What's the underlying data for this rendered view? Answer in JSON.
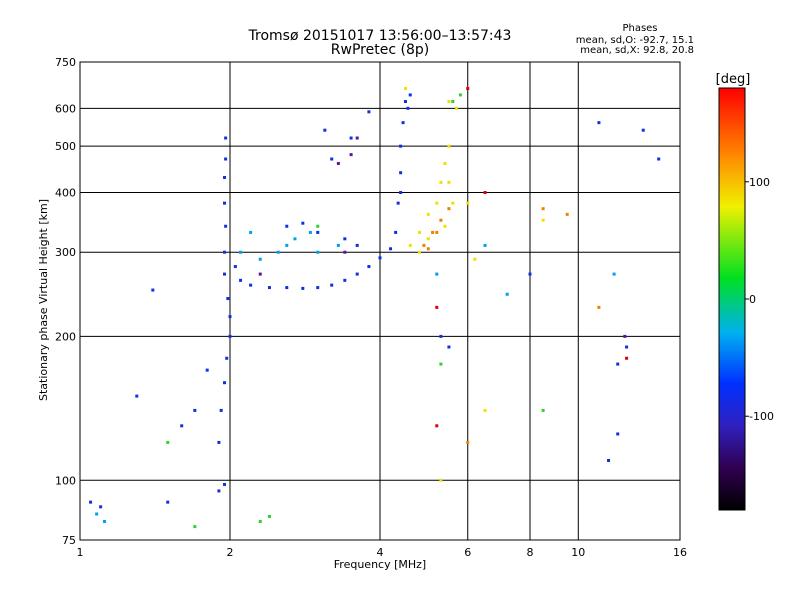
{
  "header": {
    "title": "Tromsø 20151017 13:56:00–13:57:43",
    "subtitle": "RwPretec (8p)"
  },
  "stats": {
    "heading": "Phases",
    "line_o": "mean, sd,O: -92.7, 15.1",
    "line_x": "mean, sd,X:  92.8, 20.8"
  },
  "colorbar": {
    "unit_label": "[deg]",
    "range": [
      -180,
      180
    ],
    "ticks": [
      "100",
      "0",
      "-100"
    ],
    "tick_values": [
      100,
      0,
      -100
    ]
  },
  "chart_data": {
    "type": "scatter",
    "xlabel": "Frequency [MHz]",
    "ylabel": "Stationary phase Virtual Height [km]",
    "xscale": "log",
    "yscale": "log",
    "xlim": [
      1,
      16
    ],
    "ylim": [
      75,
      750
    ],
    "x_ticks": [
      1,
      2,
      4,
      6,
      8,
      10,
      16
    ],
    "x_tick_labels": [
      "1",
      "2",
      "4",
      "6",
      "8",
      "10",
      "16"
    ],
    "y_ticks": [
      75,
      100,
      200,
      300,
      400,
      500,
      600,
      750
    ],
    "y_tick_labels": [
      "75",
      "100",
      "200",
      "300",
      "400",
      "500",
      "600",
      "750"
    ],
    "grid": true,
    "color_encoding": "phase [deg]",
    "series": [
      {
        "phase": -100,
        "color": "#1030e0",
        "points": [
          [
            1.9,
            95
          ],
          [
            1.95,
            98
          ],
          [
            1.9,
            120
          ],
          [
            1.92,
            140
          ],
          [
            1.95,
            160
          ],
          [
            1.97,
            180
          ],
          [
            2.0,
            200
          ],
          [
            2.0,
            220
          ],
          [
            1.98,
            240
          ],
          [
            1.95,
            270
          ],
          [
            1.95,
            300
          ],
          [
            1.96,
            340
          ],
          [
            1.95,
            380
          ],
          [
            1.95,
            430
          ],
          [
            1.96,
            470
          ],
          [
            1.96,
            520
          ],
          [
            2.05,
            280
          ],
          [
            2.1,
            262
          ],
          [
            2.2,
            256
          ],
          [
            2.4,
            253
          ],
          [
            2.6,
            253
          ],
          [
            2.8,
            252
          ],
          [
            3.0,
            253
          ],
          [
            3.2,
            256
          ],
          [
            3.4,
            262
          ],
          [
            3.6,
            270
          ],
          [
            3.8,
            280
          ],
          [
            4.0,
            292
          ],
          [
            4.2,
            305
          ],
          [
            4.3,
            330
          ],
          [
            4.35,
            380
          ],
          [
            4.4,
            440
          ],
          [
            4.4,
            500
          ],
          [
            4.45,
            560
          ],
          [
            4.5,
            620
          ],
          [
            4.6,
            640
          ],
          [
            4.55,
            600
          ],
          [
            4.4,
            400
          ],
          [
            2.6,
            340
          ],
          [
            2.8,
            345
          ],
          [
            3.0,
            330
          ],
          [
            3.4,
            320
          ],
          [
            3.6,
            310
          ],
          [
            3.2,
            470
          ],
          [
            3.5,
            520
          ],
          [
            3.8,
            590
          ],
          [
            3.1,
            540
          ],
          [
            1.4,
            250
          ],
          [
            1.3,
            150
          ],
          [
            1.6,
            130
          ],
          [
            1.7,
            140
          ],
          [
            1.8,
            170
          ],
          [
            1.05,
            90
          ],
          [
            1.1,
            88
          ],
          [
            1.5,
            90
          ],
          [
            5.3,
            200
          ],
          [
            5.5,
            190
          ],
          [
            8.0,
            270
          ],
          [
            11,
            560
          ],
          [
            12.5,
            190
          ],
          [
            12,
            175
          ],
          [
            12,
            125
          ],
          [
            11.5,
            110
          ],
          [
            13.5,
            540
          ],
          [
            14.5,
            470
          ]
        ]
      },
      {
        "phase": -50,
        "color": "#00a0f0",
        "points": [
          [
            2.1,
            300
          ],
          [
            2.3,
            290
          ],
          [
            2.5,
            300
          ],
          [
            2.7,
            320
          ],
          [
            2.9,
            330
          ],
          [
            3.0,
            300
          ],
          [
            2.6,
            310
          ],
          [
            2.2,
            330
          ],
          [
            3.3,
            310
          ],
          [
            1.12,
            82
          ],
          [
            1.08,
            85
          ],
          [
            11.8,
            270
          ],
          [
            6.5,
            310
          ],
          [
            5.2,
            270
          ],
          [
            7.2,
            245
          ]
        ]
      },
      {
        "phase": 30,
        "color": "#30d030",
        "points": [
          [
            2.3,
            82
          ],
          [
            2.4,
            84
          ],
          [
            1.7,
            80
          ],
          [
            3.0,
            340
          ],
          [
            5.6,
            620
          ],
          [
            5.8,
            640
          ],
          [
            8.5,
            140
          ],
          [
            1.5,
            120
          ],
          [
            5.3,
            175
          ]
        ]
      },
      {
        "phase": 110,
        "color": "#f0e000",
        "points": [
          [
            4.6,
            310
          ],
          [
            4.8,
            330
          ],
          [
            5.0,
            360
          ],
          [
            5.2,
            380
          ],
          [
            5.3,
            420
          ],
          [
            5.4,
            460
          ],
          [
            5.5,
            500
          ],
          [
            5.5,
            420
          ],
          [
            5.6,
            380
          ],
          [
            5.4,
            340
          ],
          [
            5.0,
            320
          ],
          [
            4.8,
            300
          ],
          [
            5.5,
            620
          ],
          [
            5.7,
            600
          ],
          [
            4.5,
            660
          ],
          [
            6.0,
            380
          ],
          [
            6.2,
            290
          ],
          [
            6.5,
            140
          ],
          [
            5.3,
            100
          ],
          [
            8.5,
            350
          ]
        ]
      },
      {
        "phase": 150,
        "color": "#f08000",
        "points": [
          [
            4.9,
            310
          ],
          [
            5.1,
            330
          ],
          [
            5.3,
            350
          ],
          [
            5.5,
            370
          ],
          [
            5.2,
            330
          ],
          [
            5.0,
            305
          ],
          [
            8.5,
            370
          ],
          [
            9.5,
            360
          ],
          [
            6.0,
            120
          ],
          [
            11,
            230
          ]
        ]
      },
      {
        "phase": 175,
        "color": "#e00000",
        "points": [
          [
            5.2,
            230
          ],
          [
            6.0,
            660
          ],
          [
            5.2,
            130
          ],
          [
            6.5,
            400
          ],
          [
            12.5,
            180
          ]
        ]
      },
      {
        "phase": -140,
        "color": "#6010a0",
        "points": [
          [
            3.3,
            460
          ],
          [
            3.5,
            480
          ],
          [
            3.4,
            300
          ],
          [
            2.3,
            270
          ],
          [
            3.6,
            520
          ],
          [
            12.4,
            200
          ]
        ]
      }
    ]
  }
}
